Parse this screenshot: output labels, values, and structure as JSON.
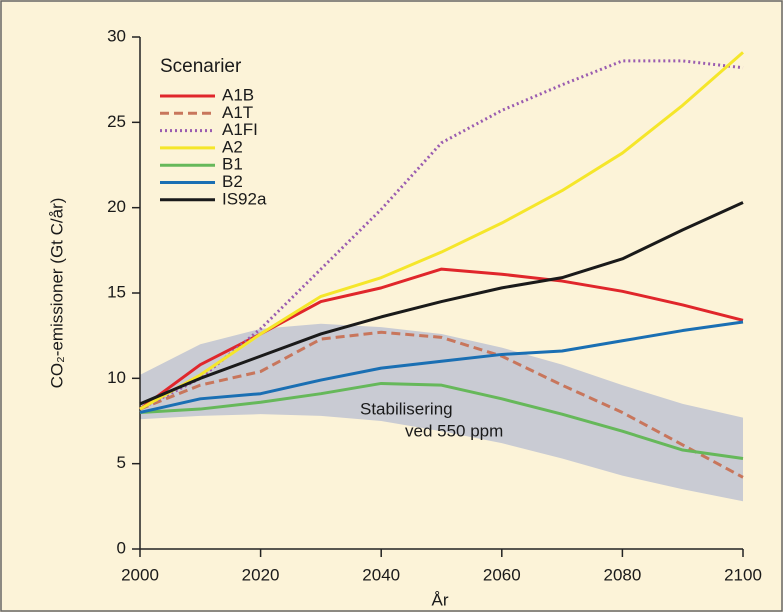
{
  "chart_data": {
    "type": "line",
    "ylabel": "CO₂-emissioner (Gt C/år)",
    "xlabel": "År",
    "legend_title": "Scenarier",
    "legend": "upper left",
    "x": [
      2000,
      2010,
      2020,
      2030,
      2040,
      2050,
      2060,
      2070,
      2080,
      2090,
      2100
    ],
    "xlim": [
      2000,
      2100
    ],
    "xticks": [
      2000,
      2020,
      2040,
      2060,
      2080,
      2100
    ],
    "ylim": [
      0,
      30
    ],
    "yticks": [
      0,
      5,
      10,
      15,
      20,
      25,
      30
    ],
    "band": {
      "color": "#c9cbd3",
      "upper": [
        10.2,
        12.0,
        12.9,
        13.2,
        13.0,
        12.6,
        11.8,
        10.8,
        9.6,
        8.5,
        7.7
      ],
      "lower": [
        7.6,
        7.8,
        7.9,
        7.8,
        7.5,
        6.9,
        6.2,
        5.3,
        4.3,
        3.5,
        2.8
      ],
      "annotation": [
        "Stabilisering",
        "ved 550 ppm"
      ]
    },
    "series": [
      {
        "name": "A1B",
        "color": "#e0262b",
        "style": "solid",
        "values": [
          8.2,
          10.8,
          12.6,
          14.5,
          15.3,
          16.4,
          16.1,
          15.7,
          15.1,
          14.3,
          13.4
        ]
      },
      {
        "name": "A1T",
        "color": "#c8765c",
        "style": "dashed",
        "values": [
          8.2,
          9.6,
          10.4,
          12.3,
          12.7,
          12.4,
          11.3,
          9.6,
          8.0,
          6.1,
          4.2
        ]
      },
      {
        "name": "A1FI",
        "color": "#9a5cb0",
        "style": "dotted",
        "values": [
          8.2,
          10.0,
          12.9,
          16.4,
          19.9,
          23.8,
          25.7,
          27.2,
          28.6,
          28.6,
          28.2
        ]
      },
      {
        "name": "A2",
        "color": "#f5e62a",
        "style": "solid",
        "values": [
          8.2,
          10.2,
          12.6,
          14.8,
          15.9,
          17.4,
          19.1,
          21.0,
          23.2,
          26.0,
          29.1
        ]
      },
      {
        "name": "B1",
        "color": "#66b85a",
        "style": "solid",
        "values": [
          8.0,
          8.2,
          8.6,
          9.1,
          9.7,
          9.6,
          8.8,
          7.9,
          6.9,
          5.8,
          5.3
        ]
      },
      {
        "name": "B2",
        "color": "#1a6fb3",
        "style": "solid",
        "values": [
          8.0,
          8.8,
          9.1,
          9.9,
          10.6,
          11.0,
          11.4,
          11.6,
          12.2,
          12.8,
          13.3
        ]
      },
      {
        "name": "IS92a",
        "color": "#1a1a1a",
        "style": "solid",
        "values": [
          8.5,
          10.0,
          11.3,
          12.6,
          13.6,
          14.5,
          15.3,
          15.9,
          17.0,
          18.7,
          20.3
        ]
      }
    ]
  }
}
